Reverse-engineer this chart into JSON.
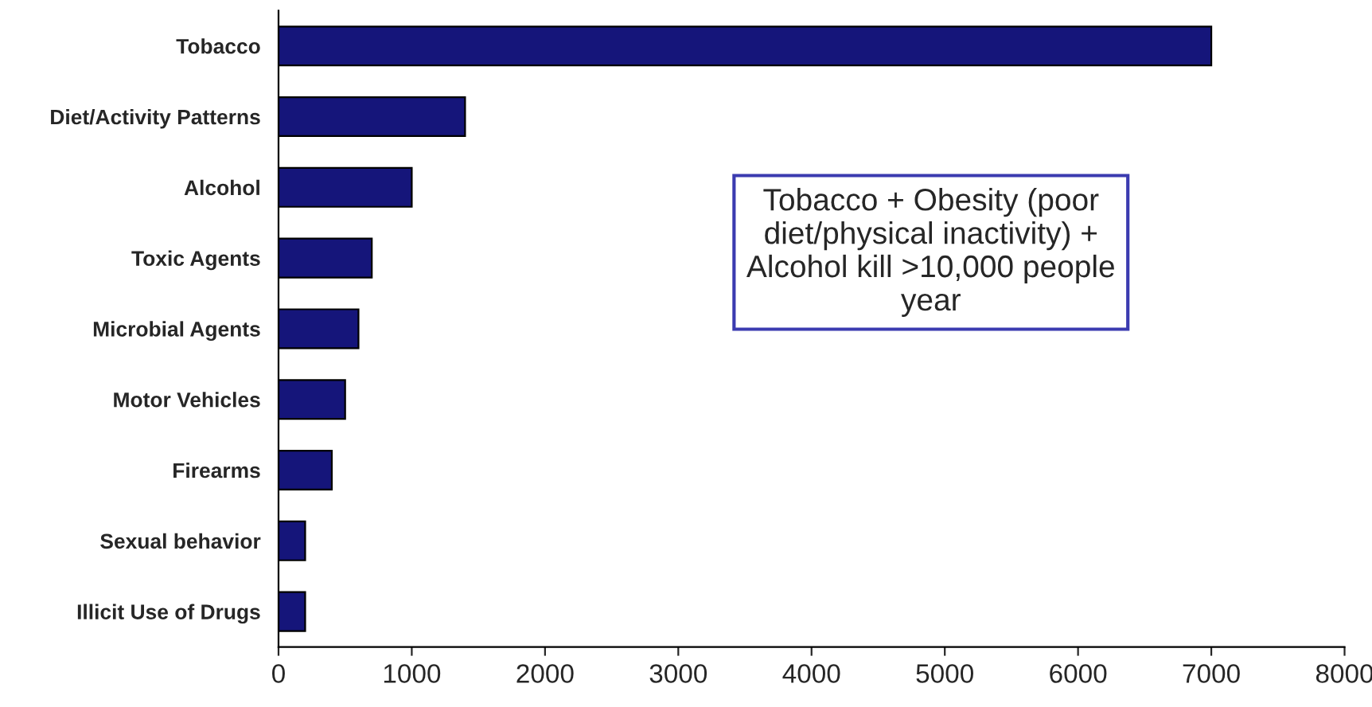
{
  "chart_data": {
    "type": "bar",
    "orientation": "horizontal",
    "categories": [
      "Tobacco",
      "Diet/Activity Patterns",
      "Alcohol",
      "Toxic Agents",
      "Microbial Agents",
      "Motor Vehicles",
      "Firearms",
      "Sexual behavior",
      "Illicit Use of Drugs"
    ],
    "values": [
      7000,
      1400,
      1000,
      700,
      600,
      500,
      400,
      200,
      200
    ],
    "color": "#15157a",
    "xlim": [
      0,
      8000
    ],
    "xticks": [
      0,
      1000,
      2000,
      3000,
      4000,
      5000,
      6000,
      7000,
      8000
    ],
    "grid": false,
    "legend": false,
    "annotations": [
      "Tobacco + Obesity (poor\ndiet/physical inactivity) +\nAlcohol kill >10,000 people\nyear"
    ]
  }
}
